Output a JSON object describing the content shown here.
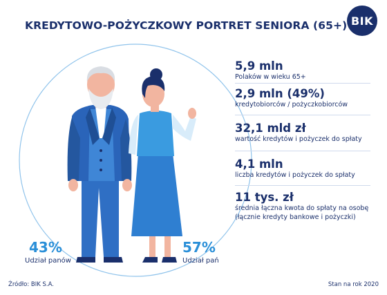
{
  "title": "KREDYTOWO-POŻYCZKOWY PORTRET SENIORA (65+)",
  "logo": "BIK",
  "stats": [
    {
      "value": "5,9 mln",
      "desc": "Polaków w wieku 65+"
    },
    {
      "value": "2,9 mln (49%)",
      "desc": "kredytobiorców / pożyczkobiorców"
    },
    {
      "value": "32,1 mld zł",
      "desc": "wartość kredytów i pożyczek do spłaty"
    },
    {
      "value": "4,1 mln",
      "desc": "liczba kredytów i pożyczek do spłaty"
    },
    {
      "value": "11 tys. zł",
      "desc": "średnia łączna kwota do spłaty na osobę",
      "desc2": "(łącznie kredyty bankowe i pożyczki)"
    }
  ],
  "men": {
    "pct": "43%",
    "label": "Udział panów"
  },
  "women": {
    "pct": "57%",
    "label": "Udział pań"
  },
  "source": "Źródło: BIK S.A.",
  "date": "Stan na rok 2020",
  "colors": {
    "navy": "#1a2f6b",
    "blue": "#2a8fd8",
    "light_blue": "#8fc3eb",
    "dress": "#2f7fd1"
  }
}
